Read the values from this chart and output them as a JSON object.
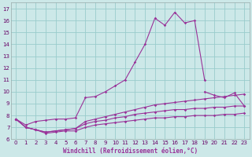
{
  "xlabel": "Windchill (Refroidissement éolien,°C)",
  "background_color": "#cce8e8",
  "grid_color": "#99cccc",
  "line_color": "#993399",
  "xlim": [
    -0.5,
    23.5
  ],
  "ylim": [
    6.0,
    17.5
  ],
  "yticks": [
    6,
    7,
    8,
    9,
    10,
    11,
    12,
    13,
    14,
    15,
    16,
    17
  ],
  "xticks": [
    0,
    1,
    2,
    3,
    4,
    5,
    6,
    7,
    8,
    9,
    10,
    11,
    12,
    13,
    14,
    15,
    16,
    17,
    18,
    19,
    20,
    21,
    22,
    23
  ],
  "series": [
    {
      "x": [
        0,
        1,
        2,
        3,
        4,
        5,
        6,
        7,
        8,
        9,
        10,
        11,
        12,
        13,
        14,
        15,
        16,
        17,
        18,
        19
      ],
      "y": [
        7.7,
        7.2,
        7.5,
        7.6,
        7.7,
        7.7,
        7.8,
        9.5,
        9.6,
        10.0,
        10.5,
        11.0,
        12.5,
        14.0,
        16.2,
        15.6,
        16.7,
        15.8,
        16.0,
        11.0
      ]
    },
    {
      "x": [
        19,
        20,
        21,
        22,
        23
      ],
      "y": [
        10.0,
        9.7,
        9.5,
        9.9,
        8.8
      ]
    },
    {
      "x": [
        0,
        1,
        2,
        3,
        4,
        5,
        6,
        7,
        8,
        9,
        10,
        11,
        12,
        13,
        14,
        15,
        16,
        17,
        18,
        19,
        20,
        21,
        22,
        23
      ],
      "y": [
        7.7,
        7.0,
        6.8,
        6.6,
        6.7,
        6.8,
        6.9,
        7.5,
        7.7,
        7.9,
        8.1,
        8.3,
        8.5,
        8.7,
        8.9,
        9.0,
        9.1,
        9.2,
        9.3,
        9.4,
        9.5,
        9.6,
        9.7,
        9.8
      ]
    },
    {
      "x": [
        0,
        1,
        2,
        3,
        4,
        5,
        6,
        7,
        8,
        9,
        10,
        11,
        12,
        13,
        14,
        15,
        16,
        17,
        18,
        19,
        20,
        21,
        22,
        23
      ],
      "y": [
        7.7,
        7.0,
        6.8,
        6.6,
        6.7,
        6.8,
        6.9,
        7.3,
        7.5,
        7.6,
        7.8,
        7.9,
        8.1,
        8.2,
        8.3,
        8.4,
        8.5,
        8.5,
        8.6,
        8.6,
        8.7,
        8.7,
        8.8,
        8.8
      ]
    },
    {
      "x": [
        0,
        1,
        2,
        3,
        4,
        5,
        6,
        7,
        8,
        9,
        10,
        11,
        12,
        13,
        14,
        15,
        16,
        17,
        18,
        19,
        20,
        21,
        22,
        23
      ],
      "y": [
        7.7,
        7.0,
        6.8,
        6.5,
        6.6,
        6.7,
        6.7,
        7.0,
        7.2,
        7.3,
        7.4,
        7.5,
        7.6,
        7.7,
        7.8,
        7.8,
        7.9,
        7.9,
        8.0,
        8.0,
        8.0,
        8.1,
        8.1,
        8.2
      ]
    }
  ]
}
